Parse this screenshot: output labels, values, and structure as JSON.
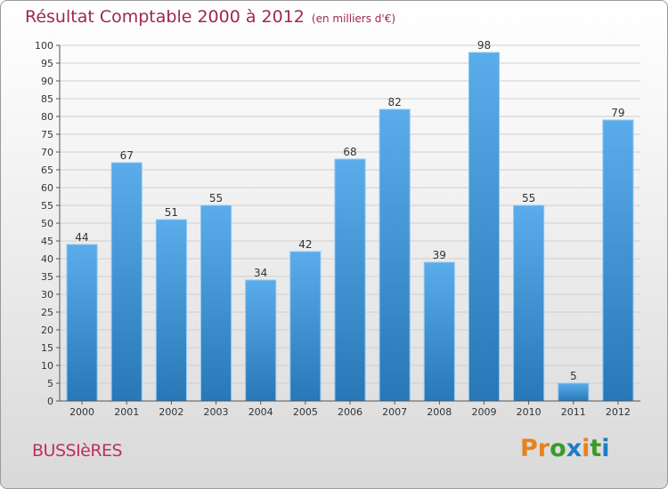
{
  "title": "Résultat Comptable 2000 à 2012",
  "subtitle": "(en milliers d'€)",
  "commune": "BUSSIèRES",
  "logo": {
    "letters": [
      "P",
      "r",
      "o",
      "x",
      "i",
      "t",
      "i"
    ],
    "colors": [
      "#e8821e",
      "#e8821e",
      "#3a9a2a",
      "#1e7cc8",
      "#e8821e",
      "#3a9a2a",
      "#1e7cc8"
    ]
  },
  "colors": {
    "bar_light": "#5aacea",
    "bar_dark": "#2878b8",
    "title": "#a0284c"
  },
  "chart_data": {
    "type": "bar",
    "title": "Résultat Comptable 2000 à 2012",
    "subtitle": "(en milliers d'€)",
    "categories": [
      "2000",
      "2001",
      "2002",
      "2003",
      "2004",
      "2005",
      "2006",
      "2007",
      "2008",
      "2009",
      "2010",
      "2011",
      "2012"
    ],
    "values": [
      44,
      67,
      51,
      55,
      34,
      42,
      68,
      82,
      39,
      98,
      55,
      5,
      79
    ],
    "ylim": [
      0,
      100
    ],
    "yticks": [
      0,
      5,
      10,
      15,
      20,
      25,
      30,
      35,
      40,
      45,
      50,
      55,
      60,
      65,
      70,
      75,
      80,
      85,
      90,
      95,
      100
    ],
    "grid": true,
    "data_labels": true
  }
}
